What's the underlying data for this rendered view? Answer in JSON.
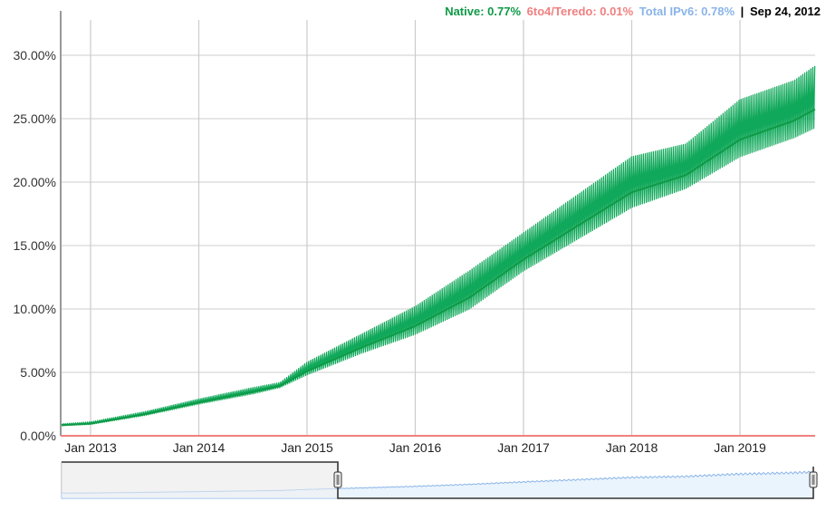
{
  "legend": {
    "native_label": "Native: 0.77%",
    "teredo_label": "6to4/Teredo: 0.01%",
    "total_label": "Total IPv6: 0.78%",
    "separator": "|",
    "date": "Sep 24, 2012"
  },
  "colors": {
    "native": "#0e9a46",
    "native_band": "#10a85a",
    "teredo": "#f08080",
    "total": "#8ab4e8",
    "grid": "#cccccc",
    "axis": "#999999"
  },
  "chart_data": {
    "type": "line",
    "title": "",
    "xlabel": "",
    "ylabel": "",
    "ylim": [
      0,
      32
    ],
    "grid": true,
    "legend_position": "top-right",
    "y_ticks": [
      "0.00%",
      "5.00%",
      "10.00%",
      "15.00%",
      "20.00%",
      "25.00%",
      "30.00%"
    ],
    "x_ticks": [
      "Jan 2013",
      "Jan 2014",
      "Jan 2015",
      "Jan 2016",
      "Jan 2017",
      "Jan 2018",
      "Jan 2019"
    ],
    "x": [
      "2012-09",
      "2013-01",
      "2013-07",
      "2014-01",
      "2014-07",
      "2014-10",
      "2015-01",
      "2015-07",
      "2016-01",
      "2016-07",
      "2017-01",
      "2017-07",
      "2018-01",
      "2018-07",
      "2019-01",
      "2019-07",
      "2019-10"
    ],
    "series": [
      {
        "name": "Native",
        "values_low": [
          0.77,
          0.9,
          1.6,
          2.5,
          3.3,
          3.8,
          4.8,
          6.5,
          8.0,
          10.0,
          13.0,
          15.5,
          18.0,
          19.5,
          22.0,
          23.5,
          24.5
        ],
        "values_high": [
          0.9,
          1.1,
          1.9,
          2.9,
          3.8,
          4.2,
          5.8,
          8.0,
          10.2,
          13.0,
          16.0,
          19.0,
          22.0,
          23.0,
          26.5,
          28.0,
          29.5
        ]
      },
      {
        "name": "6to4/Teredo",
        "values": [
          0.01,
          0.01,
          0.01,
          0.01,
          0.01,
          0.01,
          0.01,
          0.01,
          0.01,
          0.01,
          0.01,
          0.01,
          0.01,
          0.01,
          0.01,
          0.01,
          0.01
        ]
      },
      {
        "name": "Total IPv6",
        "values": [
          0.78,
          1.0,
          1.75,
          2.7,
          3.55,
          4.0,
          5.3,
          7.2,
          9.1,
          11.5,
          14.5,
          17.2,
          20.0,
          21.2,
          24.2,
          25.7,
          27.0
        ]
      }
    ]
  },
  "navigator": {
    "range_start": "Sep 2012",
    "range_end": "Oct 2019"
  }
}
